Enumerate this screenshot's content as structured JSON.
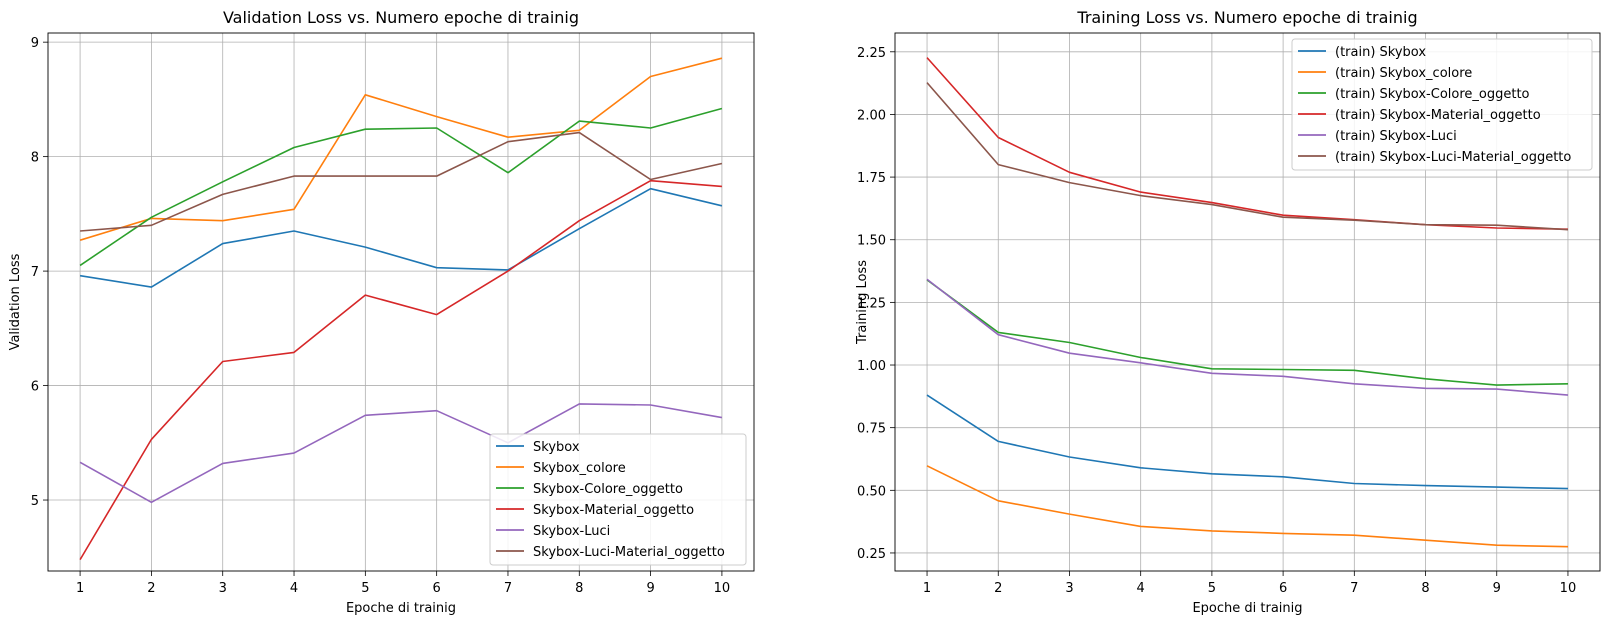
{
  "chart_data": [
    {
      "type": "line",
      "title": "Validation Loss vs. Numero epoche di trainig",
      "xlabel": "Epoche di trainig",
      "ylabel": "Validation Loss",
      "x": [
        1,
        2,
        3,
        4,
        5,
        6,
        7,
        8,
        9,
        10
      ],
      "xlim": [
        0.55,
        10.45
      ],
      "ylim": [
        4.38,
        9.08
      ],
      "xticks": [
        "1",
        "2",
        "3",
        "4",
        "5",
        "6",
        "7",
        "8",
        "9",
        "10"
      ],
      "yticks": [
        5,
        6,
        7,
        8,
        9
      ],
      "grid": true,
      "legend_position": "lower right",
      "series": [
        {
          "name": "Skybox",
          "color": "#1f77b4",
          "values": [
            6.96,
            6.86,
            7.24,
            7.35,
            7.21,
            7.03,
            7.01,
            7.37,
            7.72,
            7.57
          ]
        },
        {
          "name": "Skybox_colore",
          "color": "#ff7f0e",
          "values": [
            7.27,
            7.46,
            7.44,
            7.54,
            8.54,
            8.35,
            8.17,
            8.23,
            8.7,
            8.86
          ]
        },
        {
          "name": "Skybox-Colore_oggetto",
          "color": "#2ca02c",
          "values": [
            7.05,
            7.47,
            7.78,
            8.08,
            8.24,
            8.25,
            7.86,
            8.31,
            8.25,
            8.42
          ]
        },
        {
          "name": "Skybox-Material_oggetto",
          "color": "#d62728",
          "values": [
            4.48,
            5.53,
            6.21,
            6.29,
            6.79,
            6.62,
            7.0,
            7.44,
            7.79,
            7.74
          ]
        },
        {
          "name": "Skybox-Luci",
          "color": "#9467bd",
          "values": [
            5.33,
            4.98,
            5.32,
            5.41,
            5.74,
            5.78,
            5.5,
            5.84,
            5.83,
            5.72
          ]
        },
        {
          "name": "Skybox-Luci-Material_oggetto",
          "color": "#8c564b",
          "values": [
            7.35,
            7.4,
            7.67,
            7.83,
            7.83,
            7.83,
            8.13,
            8.21,
            7.8,
            7.94
          ]
        }
      ]
    },
    {
      "type": "line",
      "title": "Training Loss vs. Numero epoche di trainig",
      "xlabel": "Epoche di trainig",
      "ylabel": "Training Loss",
      "x": [
        1,
        2,
        3,
        4,
        5,
        6,
        7,
        8,
        9,
        10
      ],
      "xlim": [
        0.55,
        10.45
      ],
      "ylim": [
        0.178,
        2.325
      ],
      "xticks": [
        "1",
        "2",
        "3",
        "4",
        "5",
        "6",
        "7",
        "8",
        "9",
        "10"
      ],
      "yticks": [
        "0.25",
        "0.50",
        "0.75",
        "1.00",
        "1.25",
        "1.50",
        "1.75",
        "2.00",
        "2.25"
      ],
      "grid": true,
      "legend_position": "upper right",
      "series": [
        {
          "name": "(train) Skybox",
          "color": "#1f77b4",
          "values": [
            0.88,
            0.695,
            0.633,
            0.59,
            0.566,
            0.554,
            0.527,
            0.519,
            0.513,
            0.507
          ]
        },
        {
          "name": "(train) Skybox_colore",
          "color": "#ff7f0e",
          "values": [
            0.598,
            0.458,
            0.405,
            0.356,
            0.338,
            0.328,
            0.321,
            0.301,
            0.281,
            0.275
          ]
        },
        {
          "name": "(train) Skybox-Colore_oggetto",
          "color": "#2ca02c",
          "values": [
            1.34,
            1.13,
            1.09,
            1.03,
            0.985,
            0.982,
            0.979,
            0.945,
            0.92,
            0.925
          ]
        },
        {
          "name": "(train) Skybox-Material_oggetto",
          "color": "#d62728",
          "values": [
            2.227,
            1.908,
            1.769,
            1.69,
            1.648,
            1.598,
            1.58,
            1.56,
            1.547,
            1.542
          ]
        },
        {
          "name": "(train) Skybox-Luci",
          "color": "#9467bd",
          "values": [
            1.342,
            1.121,
            1.047,
            1.009,
            0.967,
            0.955,
            0.925,
            0.907,
            0.904,
            0.88
          ]
        },
        {
          "name": "(train) Skybox-Luci-Material_oggetto",
          "color": "#8c564b",
          "values": [
            2.127,
            1.8,
            1.728,
            1.676,
            1.64,
            1.59,
            1.578,
            1.56,
            1.558,
            1.54
          ]
        }
      ]
    }
  ]
}
